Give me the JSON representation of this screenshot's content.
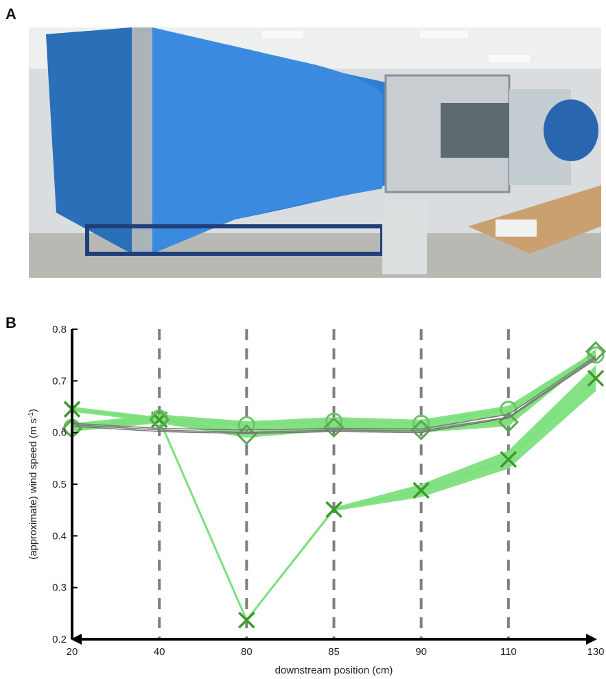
{
  "panels": {
    "a_label": "A",
    "b_label": "B"
  },
  "photo": {
    "description_icon": "wind-tunnel-photo"
  },
  "chart_data": {
    "type": "line",
    "xlabel": "downstream position (cm)",
    "ylabel_main": "(approximate) wind speed (m s",
    "ylabel_sup": "-1",
    "ylabel_close": ")",
    "x_categories": [
      "20",
      "40",
      "80",
      "85",
      "90",
      "110",
      "130"
    ],
    "ylim": [
      0.2,
      0.8
    ],
    "yticks": [
      "0.2",
      "0.3",
      "0.4",
      "0.5",
      "0.6",
      "0.7",
      "0.8"
    ],
    "ytick_values": [
      0.2,
      0.3,
      0.4,
      0.5,
      0.6,
      0.7,
      0.8
    ],
    "dashed_gridlines_at": [
      "40",
      "80",
      "85",
      "90",
      "110"
    ],
    "colors": {
      "band": "#7de07d",
      "marker": "#3a9a2a",
      "gray": "#777777",
      "axis": "#000000",
      "grid": "#808080"
    },
    "series": [
      {
        "marker": "x",
        "values": [
          0.645,
          0.625,
          0.237,
          0.451,
          0.488,
          0.548,
          0.705
        ],
        "band_lo": [
          0.64,
          0.62,
          0.235,
          0.448,
          0.475,
          0.53,
          0.68
        ],
        "band_hi": [
          0.65,
          0.63,
          0.24,
          0.455,
          0.5,
          0.565,
          0.73
        ]
      },
      {
        "marker": "circle",
        "values": [
          0.61,
          0.628,
          0.615,
          0.622,
          0.618,
          0.645,
          0.75
        ],
        "band_lo": [
          0.605,
          0.62,
          0.605,
          0.612,
          0.608,
          0.635,
          0.74
        ],
        "band_hi": [
          0.618,
          0.635,
          0.622,
          0.63,
          0.625,
          0.652,
          0.758
        ]
      },
      {
        "marker": "diamond",
        "values": [
          0.608,
          0.625,
          0.596,
          0.61,
          0.605,
          0.62,
          0.757
        ],
        "band_lo": [
          0.602,
          0.618,
          0.59,
          0.604,
          0.6,
          0.612,
          0.75
        ],
        "band_hi": [
          0.614,
          0.632,
          0.602,
          0.616,
          0.61,
          0.628,
          0.762
        ]
      },
      {
        "marker": "none-gray",
        "values": [
          0.615,
          0.605,
          0.6,
          0.605,
          0.603,
          0.63,
          0.745
        ]
      },
      {
        "marker": "none-gray",
        "values": [
          0.618,
          0.608,
          0.605,
          0.608,
          0.607,
          0.635,
          0.748
        ]
      },
      {
        "marker": "none-gray",
        "values": [
          0.612,
          0.602,
          0.598,
          0.602,
          0.6,
          0.628,
          0.742
        ]
      }
    ]
  }
}
